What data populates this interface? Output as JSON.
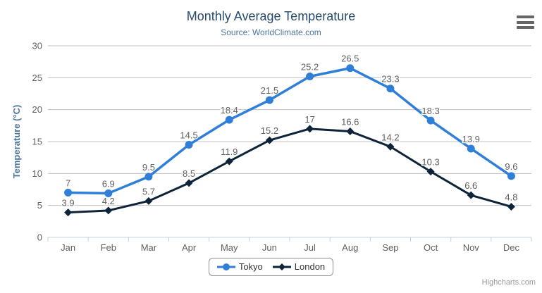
{
  "header": {
    "title": "Monthly Average Temperature",
    "subtitle": "Source: WorldClimate.com"
  },
  "credits_label": "Highcharts.com",
  "menu_icon": "hamburger-export-menu",
  "theme": {
    "title_color": "#274b6d",
    "subtitle_color": "#4d759e",
    "axis_title_color": "#4d759e",
    "axis_label_color": "#606060",
    "data_label_color": "#606060",
    "gridline_color": "#c0c0c0",
    "axis_line_color": "#c0d0e0",
    "legend_border_color": "#909090",
    "credits_color": "#999999"
  },
  "chart_data": {
    "type": "line",
    "title": "Monthly Average Temperature",
    "subtitle": "Source: WorldClimate.com",
    "categories": [
      "Jan",
      "Feb",
      "Mar",
      "Apr",
      "May",
      "Jun",
      "Jul",
      "Aug",
      "Sep",
      "Oct",
      "Nov",
      "Dec"
    ],
    "series": [
      {
        "name": "Tokyo",
        "color": "#2f7ed8",
        "marker": "circle",
        "values": [
          7,
          6.9,
          9.5,
          14.5,
          18.4,
          21.5,
          25.2,
          26.5,
          23.3,
          18.3,
          13.9,
          9.6
        ]
      },
      {
        "name": "London",
        "color": "#0d233a",
        "marker": "diamond",
        "values": [
          3.9,
          4.2,
          5.7,
          8.5,
          11.9,
          15.2,
          17,
          16.6,
          14.2,
          10.3,
          6.6,
          4.8
        ]
      }
    ],
    "xlabel": "",
    "ylabel": "Temperature (°C)",
    "ylim": [
      0,
      30
    ],
    "ytick_step": 5,
    "grid": true,
    "data_labels": true,
    "legend_position": "bottom"
  }
}
